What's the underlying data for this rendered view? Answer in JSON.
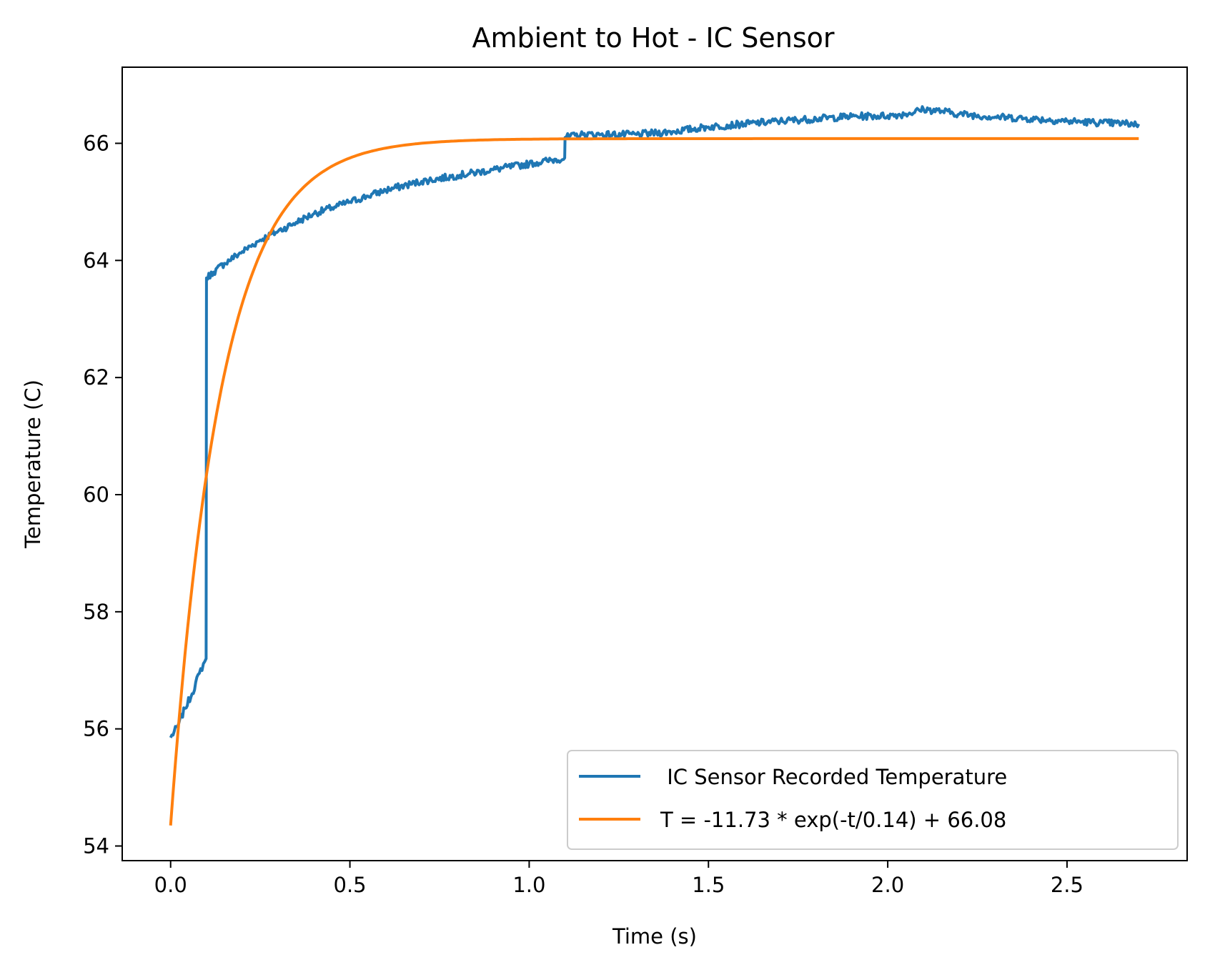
{
  "chart_data": {
    "type": "line",
    "title": "Ambient to Hot - IC Sensor",
    "xlabel": "Time (s)",
    "ylabel": "Temperature (C)",
    "xlim": [
      -0.135,
      2.835
    ],
    "ylim": [
      53.75,
      67.3
    ],
    "xticks": [
      0.0,
      0.5,
      1.0,
      1.5,
      2.0,
      2.5
    ],
    "xtick_labels": [
      "0.0",
      "0.5",
      "1.0",
      "1.5",
      "2.0",
      "2.5"
    ],
    "yticks": [
      54,
      56,
      58,
      60,
      62,
      64,
      66
    ],
    "ytick_labels": [
      "54",
      "56",
      "58",
      "60",
      "62",
      "64",
      "66"
    ],
    "grid": false,
    "legend_position": "lower-right",
    "series": [
      {
        "name": " IC Sensor Recorded Temperature",
        "color": "#1f77b4",
        "x": [
          0.0,
          0.02,
          0.04,
          0.06,
          0.08,
          0.099,
          0.1,
          0.12,
          0.15,
          0.2,
          0.25,
          0.3,
          0.35,
          0.4,
          0.45,
          0.5,
          0.55,
          0.6,
          0.7,
          0.8,
          0.9,
          1.0,
          1.05,
          1.099,
          1.1,
          1.15,
          1.2,
          1.3,
          1.4,
          1.5,
          1.6,
          1.7,
          1.8,
          1.9,
          2.0,
          2.05,
          2.1,
          2.15,
          2.2,
          2.3,
          2.4,
          2.5,
          2.6,
          2.7
        ],
        "y": [
          55.85,
          56.05,
          56.35,
          56.6,
          56.95,
          57.2,
          63.7,
          63.8,
          63.95,
          64.15,
          64.35,
          64.5,
          64.65,
          64.8,
          64.9,
          65.0,
          65.1,
          65.2,
          65.35,
          65.45,
          65.55,
          65.65,
          65.7,
          65.75,
          66.1,
          66.15,
          66.15,
          66.15,
          66.2,
          66.28,
          66.33,
          66.38,
          66.42,
          66.46,
          66.47,
          66.5,
          66.58,
          66.55,
          66.5,
          66.45,
          66.42,
          66.38,
          66.35,
          66.33
        ],
        "noise": 0.06
      },
      {
        "name": "T = -11.73 * exp(-t/0.14) + 66.08",
        "color": "#ff7f0e",
        "function": {
          "a": -11.73,
          "tau": 0.14,
          "c": 66.08,
          "t_start": 0.0,
          "t_end": 2.7
        }
      }
    ]
  }
}
